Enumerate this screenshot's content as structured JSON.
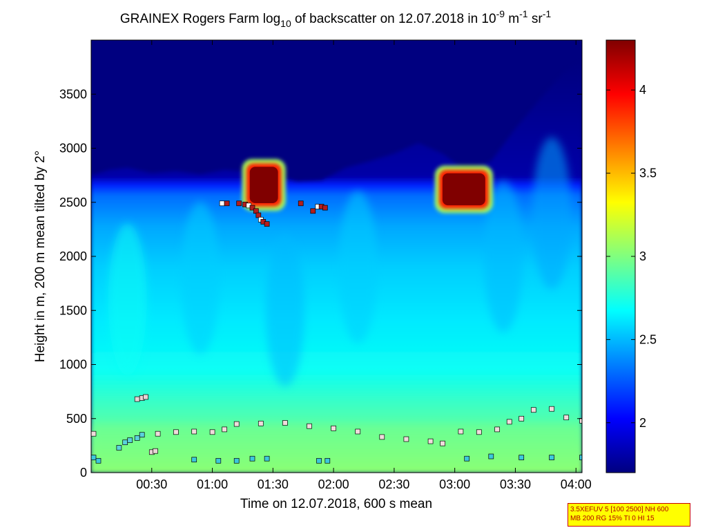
{
  "chart_data": {
    "type": "heatmap",
    "title": {
      "prefix": "GRAINEX Rogers Farm log",
      "log_subscript": "10",
      "middle": " of backscatter on 12.07.2018 in 10",
      "exp1": "-9",
      "unit_m": " m",
      "exp2": "-1",
      "unit_sr": " sr",
      "exp3": "-1"
    },
    "xlabel": "Time on 12.07.2018, 600 s mean",
    "ylabel": "Height in m, 200 m mean tilted by 2°",
    "xlim_hours": [
      0.0,
      4.05
    ],
    "ylim": [
      0,
      4000
    ],
    "x_ticks": [
      {
        "value": 0.5,
        "label": "00:30"
      },
      {
        "value": 1.0,
        "label": "01:00"
      },
      {
        "value": 1.5,
        "label": "01:30"
      },
      {
        "value": 2.0,
        "label": "02:00"
      },
      {
        "value": 2.5,
        "label": "02:30"
      },
      {
        "value": 3.0,
        "label": "03:00"
      },
      {
        "value": 3.5,
        "label": "03:30"
      },
      {
        "value": 4.0,
        "label": "04:00"
      }
    ],
    "y_ticks": [
      0,
      500,
      1000,
      1500,
      2000,
      2500,
      3000,
      3500
    ],
    "colorbar": {
      "min": 1.7,
      "max": 4.3,
      "ticks": [
        "2",
        "2.5",
        "3",
        "3.5",
        "4"
      ],
      "tick_values": [
        2.0,
        2.5,
        3.0,
        3.5,
        4.0
      ],
      "colormap": "jet"
    },
    "aerosol_top_m": [
      [
        0.0,
        2750
      ],
      [
        0.15,
        2800
      ],
      [
        0.3,
        2820
      ],
      [
        0.5,
        2770
      ],
      [
        0.7,
        2790
      ],
      [
        0.9,
        2760
      ],
      [
        1.1,
        2800
      ],
      [
        1.3,
        2780
      ],
      [
        1.5,
        2750
      ],
      [
        1.7,
        2690
      ],
      [
        1.9,
        2700
      ],
      [
        2.1,
        2820
      ],
      [
        2.3,
        2880
      ],
      [
        2.5,
        2950
      ],
      [
        2.7,
        3050
      ],
      [
        2.9,
        2950
      ],
      [
        3.1,
        2780
      ],
      [
        3.3,
        2880
      ],
      [
        3.5,
        3180
      ],
      [
        3.7,
        3450
      ],
      [
        3.9,
        3700
      ],
      [
        4.05,
        3800
      ]
    ],
    "clouds": [
      {
        "t0": 1.28,
        "t1": 1.57,
        "z0": 2460,
        "z1": 2860,
        "value": 4.3
      },
      {
        "t0": 2.87,
        "t1": 3.28,
        "z0": 2440,
        "z1": 2800,
        "value": 4.3
      }
    ],
    "cloud_base_points": [
      [
        1.08,
        2490
      ],
      [
        1.12,
        2490
      ],
      [
        1.22,
        2490
      ],
      [
        1.27,
        2480
      ],
      [
        1.3,
        2470
      ],
      [
        1.33,
        2450
      ],
      [
        1.36,
        2420
      ],
      [
        1.38,
        2380
      ],
      [
        1.4,
        2340
      ],
      [
        1.42,
        2320
      ],
      [
        1.45,
        2300
      ],
      [
        1.83,
        2420
      ],
      [
        1.87,
        2460
      ],
      [
        1.9,
        2460
      ],
      [
        1.93,
        2450
      ],
      [
        1.73,
        2490
      ]
    ],
    "layer_points": {
      "upper_layer": [
        [
          0.02,
          360
        ],
        [
          0.55,
          360
        ],
        [
          0.7,
          375
        ],
        [
          0.85,
          380
        ],
        [
          1.0,
          375
        ],
        [
          1.1,
          400
        ],
        [
          1.2,
          450
        ],
        [
          1.4,
          455
        ],
        [
          1.6,
          460
        ],
        [
          1.8,
          430
        ],
        [
          2.0,
          410
        ],
        [
          2.2,
          380
        ],
        [
          2.4,
          330
        ],
        [
          2.6,
          310
        ],
        [
          2.8,
          290
        ],
        [
          2.9,
          270
        ],
        [
          3.05,
          380
        ],
        [
          3.2,
          375
        ],
        [
          3.35,
          400
        ],
        [
          3.45,
          470
        ],
        [
          3.55,
          500
        ],
        [
          3.65,
          580
        ],
        [
          3.8,
          590
        ],
        [
          3.92,
          510
        ],
        [
          4.05,
          480
        ]
      ],
      "middle_layer": [
        [
          0.23,
          230
        ],
        [
          0.28,
          280
        ],
        [
          0.32,
          300
        ],
        [
          0.38,
          320
        ],
        [
          0.42,
          350
        ]
      ],
      "lower_layer": [
        [
          0.02,
          140
        ],
        [
          0.06,
          110
        ],
        [
          0.85,
          120
        ],
        [
          1.05,
          110
        ],
        [
          1.2,
          110
        ],
        [
          1.33,
          130
        ],
        [
          1.45,
          130
        ],
        [
          1.88,
          110
        ],
        [
          1.95,
          110
        ],
        [
          3.1,
          130
        ],
        [
          3.3,
          150
        ],
        [
          3.55,
          140
        ],
        [
          3.8,
          140
        ],
        [
          4.05,
          140
        ]
      ],
      "elevated_points": [
        [
          0.38,
          680
        ],
        [
          0.42,
          690
        ],
        [
          0.45,
          700
        ],
        [
          0.5,
          190
        ],
        [
          0.53,
          200
        ]
      ]
    }
  },
  "parameter_box": {
    "line1": "3.5XEFUV 5 [100 2500] NH 600",
    "line2": "MB 200 RG 15% TI 0 HI 15"
  },
  "colors": {
    "axis": "#000000",
    "box_fill": "#ffff00",
    "box_border": "#c80000"
  }
}
